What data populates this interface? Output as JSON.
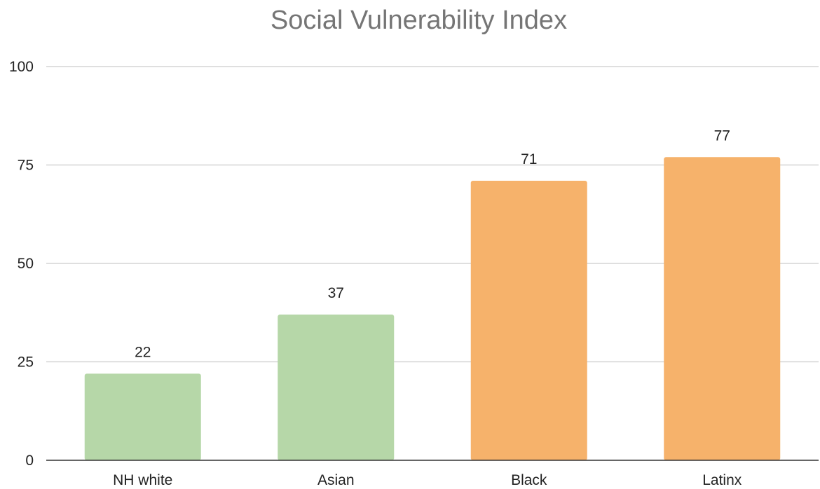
{
  "chart_data": {
    "type": "bar",
    "title": "Social Vulnerability Index",
    "xlabel": "",
    "ylabel": "",
    "categories": [
      "NH white",
      "Asian",
      "Black",
      "Latinx"
    ],
    "values": [
      22,
      37,
      71,
      77
    ],
    "data_labels": [
      "22",
      "37",
      "71",
      "77"
    ],
    "bar_colors": [
      "#b6d7a8",
      "#b6d7a8",
      "#f6b26b",
      "#f6b26b"
    ],
    "ylim": [
      0,
      100
    ],
    "yticks": [
      0,
      25,
      50,
      75,
      100
    ],
    "grid": true,
    "legend": "none",
    "gridline_color": "#cccccc",
    "axis_color": "#333333"
  }
}
